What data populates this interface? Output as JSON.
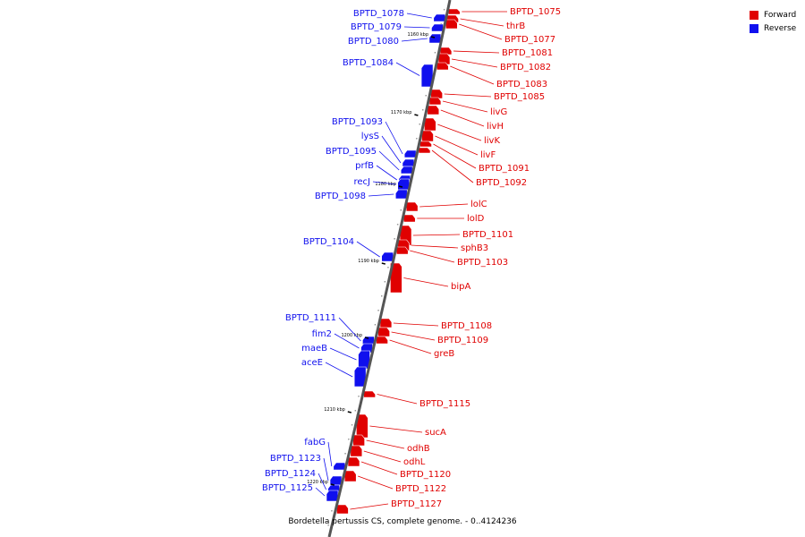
{
  "legend": {
    "forward_label": "Forward",
    "reverse_label": "Reverse",
    "forward_color": "#e00000",
    "reverse_color": "#1010ee"
  },
  "caption": "Bordetella pertussis CS, complete genome. - 0..4124236",
  "ticks": [
    "1160 kbp",
    "1170 kbp",
    "1180 kbp",
    "1190 kbp",
    "1200 kbp",
    "1210 kbp",
    "1220 kbp"
  ],
  "genes": [
    {
      "name": "BPTD_1075",
      "strand": "forward"
    },
    {
      "name": "thrB",
      "strand": "forward"
    },
    {
      "name": "BPTD_1077",
      "strand": "forward"
    },
    {
      "name": "BPTD_1078",
      "strand": "reverse"
    },
    {
      "name": "BPTD_1079",
      "strand": "reverse"
    },
    {
      "name": "BPTD_1080",
      "strand": "reverse"
    },
    {
      "name": "BPTD_1081",
      "strand": "forward"
    },
    {
      "name": "BPTD_1082",
      "strand": "forward"
    },
    {
      "name": "BPTD_1083",
      "strand": "forward"
    },
    {
      "name": "BPTD_1084",
      "strand": "reverse"
    },
    {
      "name": "BPTD_1085",
      "strand": "forward"
    },
    {
      "name": "livG",
      "strand": "forward"
    },
    {
      "name": "livH",
      "strand": "forward"
    },
    {
      "name": "livK",
      "strand": "forward"
    },
    {
      "name": "livF",
      "strand": "forward"
    },
    {
      "name": "BPTD_1091",
      "strand": "forward"
    },
    {
      "name": "BPTD_1092",
      "strand": "forward"
    },
    {
      "name": "BPTD_1093",
      "strand": "reverse"
    },
    {
      "name": "lysS",
      "strand": "reverse"
    },
    {
      "name": "BPTD_1095",
      "strand": "reverse"
    },
    {
      "name": "prfB",
      "strand": "reverse"
    },
    {
      "name": "recJ",
      "strand": "reverse"
    },
    {
      "name": "BPTD_1098",
      "strand": "reverse"
    },
    {
      "name": "lolC",
      "strand": "forward"
    },
    {
      "name": "lolD",
      "strand": "forward"
    },
    {
      "name": "BPTD_1101",
      "strand": "forward"
    },
    {
      "name": "sphB3",
      "strand": "forward"
    },
    {
      "name": "BPTD_1103",
      "strand": "forward"
    },
    {
      "name": "BPTD_1104",
      "strand": "reverse"
    },
    {
      "name": "bipA",
      "strand": "forward"
    },
    {
      "name": "BPTD_1108",
      "strand": "forward"
    },
    {
      "name": "BPTD_1109",
      "strand": "forward"
    },
    {
      "name": "greB",
      "strand": "forward"
    },
    {
      "name": "BPTD_1111",
      "strand": "reverse"
    },
    {
      "name": "fim2",
      "strand": "reverse"
    },
    {
      "name": "maeB",
      "strand": "reverse"
    },
    {
      "name": "aceE",
      "strand": "reverse"
    },
    {
      "name": "BPTD_1115",
      "strand": "forward"
    },
    {
      "name": "sucA",
      "strand": "forward"
    },
    {
      "name": "odhB",
      "strand": "forward"
    },
    {
      "name": "odhL",
      "strand": "forward"
    },
    {
      "name": "BPTD_1120",
      "strand": "forward"
    },
    {
      "name": "BPTD_1122",
      "strand": "forward"
    },
    {
      "name": "BPTD_1127",
      "strand": "forward"
    },
    {
      "name": "fabG",
      "strand": "reverse"
    },
    {
      "name": "BPTD_1123",
      "strand": "reverse"
    },
    {
      "name": "BPTD_1124",
      "strand": "reverse"
    },
    {
      "name": "BPTD_1125",
      "strand": "reverse"
    }
  ]
}
